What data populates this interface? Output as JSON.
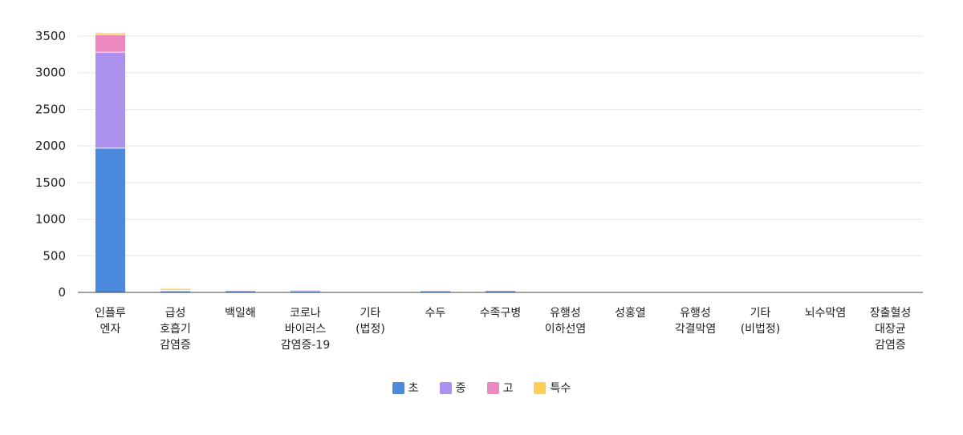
{
  "chart_data": {
    "type": "bar",
    "stacked": true,
    "categories": [
      [
        "인플루",
        "엔자"
      ],
      [
        "급성",
        "호흡기",
        "감염증"
      ],
      [
        "백일해"
      ],
      [
        "코로나",
        "바이러스",
        "감염증-19"
      ],
      [
        "기타",
        "(법정)"
      ],
      [
        "수두"
      ],
      [
        "수족구병"
      ],
      [
        "유행성",
        "이하선염"
      ],
      [
        "성홍열"
      ],
      [
        "유행성",
        "각결막염"
      ],
      [
        "기타",
        "(비법정)"
      ],
      [
        "뇌수막염"
      ],
      [
        "장출혈성",
        "대장균",
        "감염증"
      ]
    ],
    "series": [
      {
        "name": "초",
        "color": "#4a89dc",
        "values": [
          1970,
          20,
          22,
          20,
          12,
          20,
          24,
          10,
          12,
          8,
          10,
          5,
          10
        ]
      },
      {
        "name": "중",
        "color": "#ac92ec",
        "values": [
          1310,
          10,
          12,
          12,
          4,
          12,
          8,
          4,
          4,
          4,
          4,
          3,
          4
        ]
      },
      {
        "name": "고",
        "color": "#ec87c0",
        "values": [
          240,
          15,
          6,
          8,
          2,
          3,
          2,
          2,
          1,
          3,
          2,
          2,
          2
        ]
      },
      {
        "name": "특수",
        "color": "#ffce54",
        "values": [
          25,
          15,
          0,
          0,
          0,
          0,
          0,
          0,
          0,
          0,
          0,
          0,
          0
        ]
      }
    ],
    "ylim": [
      0,
      3500
    ],
    "yticks": [
      0,
      500,
      1000,
      1500,
      2000,
      2500,
      3000,
      3500
    ],
    "grid": true,
    "legend_position": "bottom"
  }
}
